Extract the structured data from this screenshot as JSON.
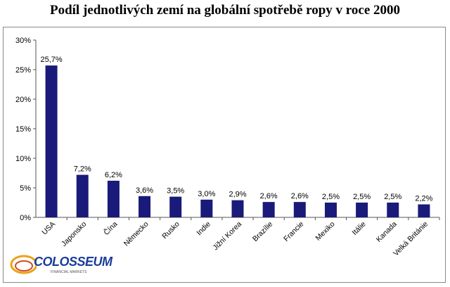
{
  "chart_data": {
    "type": "bar",
    "title": "Podíl jednotlivých zemí na globální spotřebě ropy v roce 2000",
    "categories": [
      "USA",
      "Japonsko",
      "Čína",
      "Německo",
      "Rusko",
      "Indie",
      "Jižní Korea",
      "Brazílie",
      "Francie",
      "Mexiko",
      "Itálie",
      "Kanada",
      "Velká Británie"
    ],
    "values": [
      25.7,
      7.2,
      6.2,
      3.6,
      3.5,
      3.0,
      2.9,
      2.6,
      2.6,
      2.5,
      2.5,
      2.5,
      2.2
    ],
    "data_labels": [
      "25,7%",
      "7,2%",
      "6,2%",
      "3,6%",
      "3,5%",
      "3,0%",
      "2,9%",
      "2,6%",
      "2,6%",
      "2,5%",
      "2,5%",
      "2,5%",
      "2,2%"
    ],
    "yticks": [
      "0%",
      "5%",
      "10%",
      "15%",
      "20%",
      "25%",
      "30%"
    ],
    "ylim": [
      0,
      30
    ],
    "grid": false,
    "legend": "none",
    "bar_color": "#1a1a7a"
  },
  "logo": {
    "text": "COLOSSEUM",
    "sub": "FINANCIAL MARKETS"
  }
}
